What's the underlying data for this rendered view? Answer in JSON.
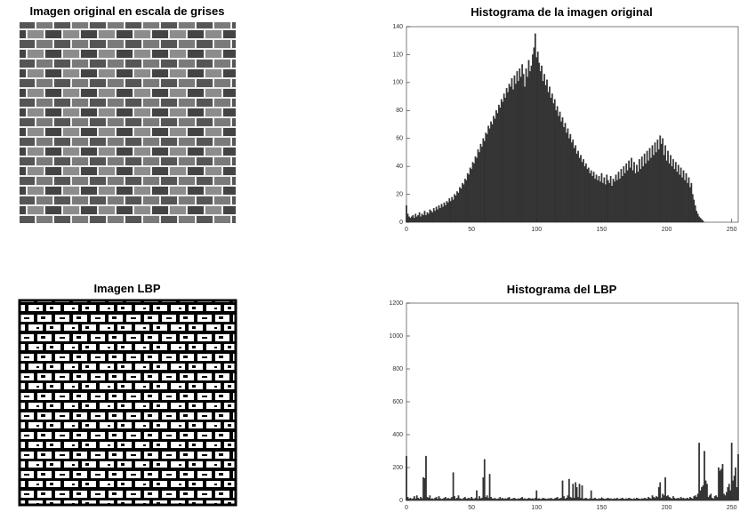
{
  "images": [
    {
      "title": "Imagen original en escala de grises"
    },
    {
      "title": "Imagen LBP"
    }
  ],
  "chart_data": [
    {
      "type": "bar",
      "title": "Histograma de la imagen original",
      "color": "#333333",
      "xlim": [
        0,
        255
      ],
      "ylim": [
        0,
        140
      ],
      "xticks": [
        0,
        50,
        100,
        150,
        200,
        250
      ],
      "yticks": [
        0,
        20,
        40,
        60,
        80,
        100,
        120,
        140
      ],
      "x": [
        0,
        1,
        2,
        3,
        4,
        5,
        6,
        7,
        8,
        9,
        10,
        11,
        12,
        13,
        14,
        15,
        16,
        17,
        18,
        19,
        20,
        21,
        22,
        23,
        24,
        25,
        26,
        27,
        28,
        29,
        30,
        31,
        32,
        33,
        34,
        35,
        36,
        37,
        38,
        39,
        40,
        41,
        42,
        43,
        44,
        45,
        46,
        47,
        48,
        49,
        50,
        51,
        52,
        53,
        54,
        55,
        56,
        57,
        58,
        59,
        60,
        61,
        62,
        63,
        64,
        65,
        66,
        67,
        68,
        69,
        70,
        71,
        72,
        73,
        74,
        75,
        76,
        77,
        78,
        79,
        80,
        81,
        82,
        83,
        84,
        85,
        86,
        87,
        88,
        89,
        90,
        91,
        92,
        93,
        94,
        95,
        96,
        97,
        98,
        99,
        100,
        101,
        102,
        103,
        104,
        105,
        106,
        107,
        108,
        109,
        110,
        111,
        112,
        113,
        114,
        115,
        116,
        117,
        118,
        119,
        120,
        121,
        122,
        123,
        124,
        125,
        126,
        127,
        128,
        129,
        130,
        131,
        132,
        133,
        134,
        135,
        136,
        137,
        138,
        139,
        140,
        141,
        142,
        143,
        144,
        145,
        146,
        147,
        148,
        149,
        150,
        151,
        152,
        153,
        154,
        155,
        156,
        157,
        158,
        159,
        160,
        161,
        162,
        163,
        164,
        165,
        166,
        167,
        168,
        169,
        170,
        171,
        172,
        173,
        174,
        175,
        176,
        177,
        178,
        179,
        180,
        181,
        182,
        183,
        184,
        185,
        186,
        187,
        188,
        189,
        190,
        191,
        192,
        193,
        194,
        195,
        196,
        197,
        198,
        199,
        200,
        201,
        202,
        203,
        204,
        205,
        206,
        207,
        208,
        209,
        210,
        211,
        212,
        213,
        214,
        215,
        216,
        217,
        218,
        219,
        220,
        221,
        222,
        223,
        224,
        225,
        226,
        227,
        228,
        229,
        230,
        231,
        232,
        233,
        234,
        235,
        236,
        237,
        238,
        239,
        240,
        241,
        242,
        243,
        244,
        245,
        246,
        247,
        248,
        249,
        250,
        251,
        252,
        253,
        254,
        255
      ],
      "values": [
        12,
        6,
        4,
        3,
        4,
        5,
        3,
        6,
        4,
        5,
        7,
        4,
        6,
        5,
        8,
        5,
        7,
        6,
        9,
        8,
        7,
        10,
        8,
        11,
        9,
        12,
        10,
        13,
        11,
        14,
        12,
        15,
        14,
        17,
        15,
        18,
        16,
        20,
        19,
        22,
        21,
        25,
        24,
        28,
        27,
        31,
        30,
        35,
        34,
        39,
        38,
        43,
        42,
        47,
        46,
        52,
        50,
        56,
        54,
        60,
        58,
        64,
        63,
        69,
        67,
        72,
        70,
        76,
        74,
        80,
        78,
        84,
        82,
        88,
        86,
        92,
        89,
        96,
        93,
        99,
        97,
        103,
        95,
        105,
        99,
        108,
        101,
        110,
        104,
        113,
        106,
        97,
        110,
        104,
        116,
        108,
        112,
        120,
        125,
        135,
        118,
        122,
        114,
        108,
        112,
        101,
        106,
        98,
        102,
        93,
        97,
        89,
        92,
        85,
        88,
        80,
        83,
        76,
        79,
        72,
        75,
        68,
        71,
        64,
        67,
        60,
        63,
        57,
        59,
        53,
        55,
        49,
        51,
        46,
        48,
        43,
        45,
        40,
        42,
        38,
        39,
        35,
        37,
        33,
        36,
        31,
        34,
        30,
        33,
        29,
        35,
        28,
        32,
        27,
        34,
        30,
        28,
        33,
        26,
        31,
        29,
        34,
        30,
        36,
        31,
        38,
        33,
        40,
        35,
        42,
        37,
        44,
        39,
        46,
        37,
        43,
        35,
        41,
        36,
        45,
        38,
        47,
        40,
        49,
        42,
        51,
        44,
        53,
        46,
        55,
        48,
        57,
        50,
        59,
        52,
        62,
        56,
        60,
        48,
        55,
        44,
        51,
        42,
        48,
        40,
        45,
        38,
        43,
        36,
        41,
        34,
        39,
        32,
        37,
        30,
        35,
        28,
        32,
        25,
        28,
        20,
        16,
        12,
        8,
        6,
        4,
        3,
        2,
        1,
        0,
        0,
        0,
        0,
        0,
        0,
        0,
        0,
        0,
        0,
        0,
        0,
        0,
        0,
        0,
        0,
        0,
        0,
        0,
        0,
        0,
        0,
        0,
        0,
        0,
        0,
        0
      ]
    },
    {
      "type": "bar",
      "title": "Histograma del LBP",
      "color": "#333333",
      "xlim": [
        0,
        255
      ],
      "ylim": [
        0,
        1200
      ],
      "xticks": [
        0,
        50,
        100,
        150,
        200,
        250
      ],
      "yticks": [
        0,
        200,
        400,
        600,
        800,
        1000,
        1200
      ],
      "x": [
        0,
        1,
        2,
        3,
        4,
        5,
        6,
        7,
        8,
        9,
        10,
        11,
        12,
        13,
        14,
        15,
        16,
        17,
        18,
        19,
        20,
        21,
        22,
        23,
        24,
        25,
        26,
        27,
        28,
        29,
        30,
        31,
        32,
        33,
        34,
        35,
        36,
        37,
        38,
        39,
        40,
        41,
        42,
        43,
        44,
        45,
        46,
        47,
        48,
        49,
        50,
        51,
        52,
        53,
        54,
        55,
        56,
        57,
        58,
        59,
        60,
        61,
        62,
        63,
        64,
        65,
        66,
        67,
        68,
        69,
        70,
        71,
        72,
        73,
        74,
        75,
        76,
        77,
        78,
        79,
        80,
        81,
        82,
        83,
        84,
        85,
        86,
        87,
        88,
        89,
        90,
        91,
        92,
        93,
        94,
        95,
        96,
        97,
        98,
        99,
        100,
        101,
        102,
        103,
        104,
        105,
        106,
        107,
        108,
        109,
        110,
        111,
        112,
        113,
        114,
        115,
        116,
        117,
        118,
        119,
        120,
        121,
        122,
        123,
        124,
        125,
        126,
        127,
        128,
        129,
        130,
        131,
        132,
        133,
        134,
        135,
        136,
        137,
        138,
        139,
        140,
        141,
        142,
        143,
        144,
        145,
        146,
        147,
        148,
        149,
        150,
        151,
        152,
        153,
        154,
        155,
        156,
        157,
        158,
        159,
        160,
        161,
        162,
        163,
        164,
        165,
        166,
        167,
        168,
        169,
        170,
        171,
        172,
        173,
        174,
        175,
        176,
        177,
        178,
        179,
        180,
        181,
        182,
        183,
        184,
        185,
        186,
        187,
        188,
        189,
        190,
        191,
        192,
        193,
        194,
        195,
        196,
        197,
        198,
        199,
        200,
        201,
        202,
        203,
        204,
        205,
        206,
        207,
        208,
        209,
        210,
        211,
        212,
        213,
        214,
        215,
        216,
        217,
        218,
        219,
        220,
        221,
        222,
        223,
        224,
        225,
        226,
        227,
        228,
        229,
        230,
        231,
        232,
        233,
        234,
        235,
        236,
        237,
        238,
        239,
        240,
        241,
        242,
        243,
        244,
        245,
        246,
        247,
        248,
        249,
        250,
        251,
        252,
        253,
        254,
        255
      ],
      "values": [
        270,
        20,
        10,
        15,
        8,
        12,
        25,
        10,
        30,
        15,
        10,
        20,
        12,
        140,
        135,
        270,
        20,
        15,
        30,
        10,
        12,
        8,
        15,
        20,
        10,
        25,
        12,
        8,
        10,
        15,
        20,
        10,
        15,
        10,
        12,
        20,
        170,
        25,
        10,
        15,
        30,
        12,
        10,
        8,
        15,
        20,
        10,
        12,
        15,
        10,
        20,
        12,
        8,
        15,
        60,
        10,
        25,
        12,
        15,
        140,
        250,
        20,
        30,
        15,
        160,
        20,
        12,
        10,
        15,
        8,
        10,
        12,
        20,
        10,
        15,
        8,
        12,
        10,
        15,
        20,
        8,
        10,
        12,
        15,
        10,
        8,
        12,
        10,
        15,
        20,
        10,
        12,
        8,
        10,
        15,
        12,
        10,
        12,
        8,
        15,
        60,
        10,
        12,
        8,
        10,
        15,
        12,
        10,
        8,
        12,
        10,
        15,
        10,
        8,
        12,
        15,
        20,
        10,
        12,
        15,
        120,
        25,
        10,
        15,
        30,
        130,
        20,
        15,
        100,
        15,
        110,
        80,
        20,
        100,
        15,
        90,
        10,
        12,
        15,
        10,
        8,
        12,
        60,
        10,
        12,
        15,
        10,
        8,
        12,
        10,
        15,
        12,
        10,
        8,
        12,
        15,
        10,
        12,
        8,
        10,
        12,
        10,
        15,
        8,
        10,
        12,
        15,
        10,
        8,
        12,
        10,
        15,
        12,
        10,
        8,
        12,
        10,
        15,
        12,
        10,
        8,
        12,
        10,
        15,
        12,
        10,
        20,
        15,
        10,
        30,
        20,
        15,
        25,
        20,
        80,
        110,
        15,
        40,
        30,
        140,
        25,
        30,
        20,
        15,
        10,
        25,
        15,
        10,
        12,
        15,
        10,
        20,
        12,
        15,
        10,
        12,
        15,
        10,
        20,
        15,
        10,
        25,
        30,
        20,
        40,
        350,
        60,
        80,
        90,
        300,
        120,
        100,
        20,
        30,
        40,
        15,
        10,
        25,
        30,
        20,
        200,
        180,
        190,
        220,
        40,
        30,
        50,
        80,
        100,
        60,
        350,
        120,
        150,
        200,
        80,
        280
      ]
    }
  ]
}
